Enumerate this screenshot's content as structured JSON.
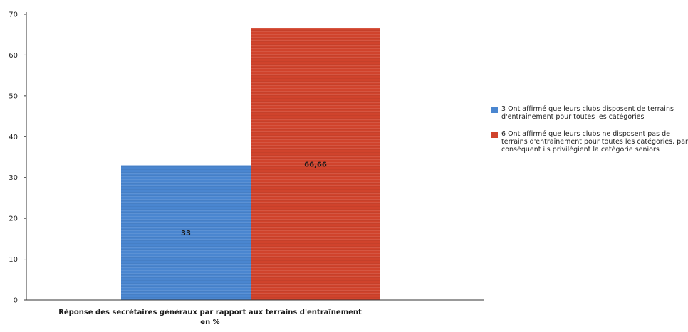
{
  "chart_data": {
    "type": "bar",
    "xlabel": "Réponse des secrétaires généraux par rapport aux terrains d'entraînement en %",
    "ylabel": "",
    "ylim": [
      0,
      70
    ],
    "yticks": [
      0,
      10,
      20,
      30,
      40,
      50,
      60,
      70
    ],
    "series": [
      {
        "name": "3 Ont affirmé que leurs clubs disposent de terrains d'entraînement pour toutes les catégories",
        "value": 33,
        "label": "33",
        "color": "#4a86d0"
      },
      {
        "name": "6 Ont affirmé que leurs clubs ne disposent pas de terrains d'entraînement pour toutes les catégories, par conséquent ils privilégient la catégorie seniors",
        "value": 66.66,
        "label": "66,66",
        "color": "#d0432c"
      }
    ],
    "grid": false,
    "legend_position": "right"
  }
}
